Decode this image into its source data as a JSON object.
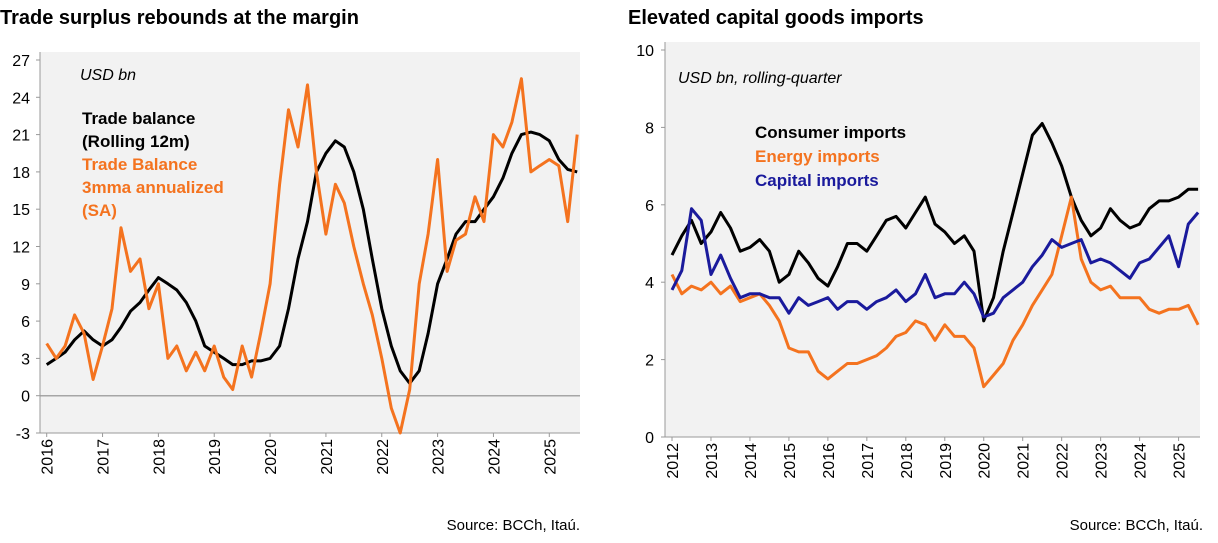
{
  "chart_data": [
    {
      "type": "line",
      "title": "Trade surplus rebounds at the margin",
      "annotation": "USD bn",
      "source": "Source: BCCh, Itaú.",
      "x": [
        2016.0,
        2016.17,
        2016.33,
        2016.5,
        2016.67,
        2016.83,
        2017.0,
        2017.17,
        2017.33,
        2017.5,
        2017.67,
        2017.83,
        2018.0,
        2018.17,
        2018.33,
        2018.5,
        2018.67,
        2018.83,
        2019.0,
        2019.17,
        2019.33,
        2019.5,
        2019.67,
        2019.83,
        2020.0,
        2020.17,
        2020.33,
        2020.5,
        2020.67,
        2020.83,
        2021.0,
        2021.17,
        2021.33,
        2021.5,
        2021.67,
        2021.83,
        2022.0,
        2022.17,
        2022.33,
        2022.5,
        2022.67,
        2022.83,
        2023.0,
        2023.17,
        2023.33,
        2023.5,
        2023.67,
        2023.83,
        2024.0,
        2024.17,
        2024.33,
        2024.5,
        2024.67,
        2024.83,
        2025.0,
        2025.17,
        2025.33,
        2025.5
      ],
      "xlim": [
        2015.88,
        2025.55
      ],
      "xticks": [
        2016,
        2017,
        2018,
        2019,
        2020,
        2021,
        2022,
        2023,
        2024,
        2025
      ],
      "ylim": [
        -3,
        27
      ],
      "yticks": [
        -3,
        0,
        3,
        6,
        9,
        12,
        15,
        18,
        21,
        24,
        27
      ],
      "reference_line": 0,
      "background": "#f2f2f2",
      "series": [
        {
          "name": "Trade balance\n(Rolling 12m)",
          "color": "#000000",
          "values": [
            2.5,
            3,
            3.5,
            4.5,
            5.2,
            4.5,
            4,
            4.5,
            5.5,
            6.8,
            7.5,
            8.5,
            9.5,
            9,
            8.5,
            7.5,
            6,
            4,
            3.5,
            3,
            2.5,
            2.5,
            2.8,
            2.8,
            3,
            4,
            7,
            11,
            14,
            18,
            19.5,
            20.5,
            20,
            18,
            15,
            11,
            7,
            4,
            2,
            1,
            2,
            5,
            9,
            11,
            13,
            14,
            14,
            15,
            16,
            17.5,
            19.5,
            21,
            21.2,
            21,
            20.5,
            19,
            18.2,
            18
          ]
        },
        {
          "name": "Trade Balance\n3mma annualized\n(SA)",
          "color": "#f4731f",
          "values": [
            4.2,
            3,
            4,
            6.5,
            5,
            1.3,
            4,
            7,
            13.5,
            10,
            11,
            7,
            9,
            3,
            4,
            2,
            3.5,
            2,
            4,
            1.5,
            0.5,
            4,
            1.5,
            5,
            9,
            17,
            23,
            20,
            25,
            18,
            13,
            17,
            15.5,
            12,
            9,
            6.5,
            3,
            -1,
            -3,
            0.5,
            9,
            13,
            19,
            10,
            12.5,
            13,
            16,
            14,
            21,
            20,
            22,
            25.5,
            18,
            18.5,
            19,
            18.5,
            14,
            21
          ]
        }
      ]
    },
    {
      "type": "line",
      "title": "Elevated capital goods imports",
      "annotation": "USD bn, rolling-quarter",
      "source": "Source: BCCh, Itaú.",
      "x": [
        2012.0,
        2012.25,
        2012.5,
        2012.75,
        2013.0,
        2013.25,
        2013.5,
        2013.75,
        2014.0,
        2014.25,
        2014.5,
        2014.75,
        2015.0,
        2015.25,
        2015.5,
        2015.75,
        2016.0,
        2016.25,
        2016.5,
        2016.75,
        2017.0,
        2017.25,
        2017.5,
        2017.75,
        2018.0,
        2018.25,
        2018.5,
        2018.75,
        2019.0,
        2019.25,
        2019.5,
        2019.75,
        2020.0,
        2020.25,
        2020.5,
        2020.75,
        2021.0,
        2021.25,
        2021.5,
        2021.75,
        2022.0,
        2022.25,
        2022.5,
        2022.75,
        2023.0,
        2023.25,
        2023.5,
        2023.75,
        2024.0,
        2024.25,
        2024.5,
        2024.75,
        2025.0,
        2025.25,
        2025.5
      ],
      "xlim": [
        2011.82,
        2025.55
      ],
      "xticks": [
        2012,
        2013,
        2014,
        2015,
        2016,
        2017,
        2018,
        2019,
        2020,
        2021,
        2022,
        2023,
        2024,
        2025
      ],
      "ylim": [
        0,
        10
      ],
      "yticks": [
        0,
        2,
        4,
        6,
        8,
        10
      ],
      "background": "#f2f2f2",
      "series": [
        {
          "name": "Consumer imports",
          "color": "#000000",
          "values": [
            4.7,
            5.2,
            5.6,
            5.0,
            5.3,
            5.8,
            5.4,
            4.8,
            4.9,
            5.1,
            4.8,
            4.0,
            4.2,
            4.8,
            4.5,
            4.1,
            3.9,
            4.4,
            5.0,
            5.0,
            4.8,
            5.2,
            5.6,
            5.7,
            5.4,
            5.8,
            6.2,
            5.5,
            5.3,
            5.0,
            5.2,
            4.8,
            3.0,
            3.6,
            4.8,
            5.8,
            6.8,
            7.8,
            8.1,
            7.6,
            7.0,
            6.2,
            5.6,
            5.2,
            5.4,
            5.9,
            5.6,
            5.4,
            5.5,
            5.9,
            6.1,
            6.1,
            6.2,
            6.4,
            6.4
          ]
        },
        {
          "name": "Energy imports",
          "color": "#f4731f",
          "values": [
            4.2,
            3.7,
            3.9,
            3.8,
            4.0,
            3.7,
            3.9,
            3.5,
            3.6,
            3.7,
            3.4,
            3.0,
            2.3,
            2.2,
            2.2,
            1.7,
            1.5,
            1.7,
            1.9,
            1.9,
            2.0,
            2.1,
            2.3,
            2.6,
            2.7,
            3.0,
            2.9,
            2.5,
            2.9,
            2.6,
            2.6,
            2.3,
            1.3,
            1.6,
            1.9,
            2.5,
            2.9,
            3.4,
            3.8,
            4.2,
            5.2,
            6.2,
            4.6,
            4.0,
            3.8,
            3.9,
            3.6,
            3.6,
            3.6,
            3.3,
            3.2,
            3.3,
            3.3,
            3.4,
            2.9
          ]
        },
        {
          "name": "Capital imports",
          "color": "#1a1a9c",
          "values": [
            3.8,
            4.3,
            5.9,
            5.6,
            4.2,
            4.7,
            4.1,
            3.6,
            3.7,
            3.7,
            3.6,
            3.6,
            3.2,
            3.6,
            3.4,
            3.5,
            3.6,
            3.3,
            3.5,
            3.5,
            3.3,
            3.5,
            3.6,
            3.8,
            3.5,
            3.7,
            4.2,
            3.6,
            3.7,
            3.7,
            4.0,
            3.7,
            3.1,
            3.2,
            3.6,
            3.8,
            4.0,
            4.4,
            4.7,
            5.1,
            4.9,
            5.0,
            5.1,
            4.5,
            4.6,
            4.5,
            4.3,
            4.1,
            4.5,
            4.6,
            4.9,
            5.2,
            4.4,
            5.5,
            5.8
          ]
        }
      ]
    }
  ]
}
